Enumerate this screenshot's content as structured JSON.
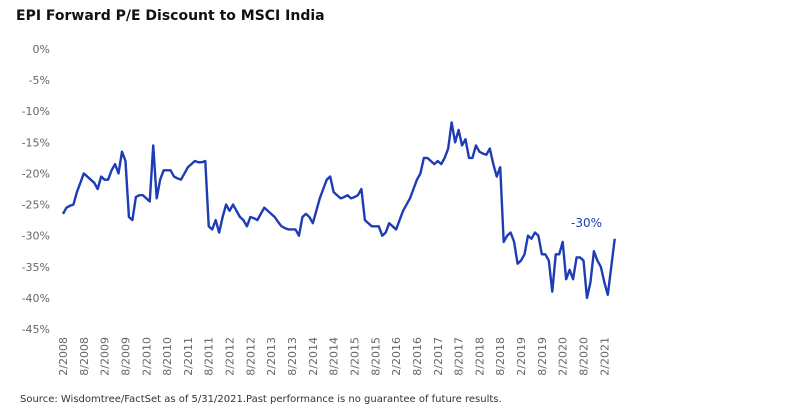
{
  "chart_data": {
    "type": "line",
    "title": "EPI Forward P/E Discount to MSCI India",
    "source": "Source:  Wisdomtree/FactSet as of 5/31/2021.Past performance is no guarantee of future results.",
    "annotation": "-30%",
    "categories": [
      "2/2008",
      null,
      null,
      null,
      null,
      null,
      "8/2008",
      null,
      null,
      null,
      null,
      null,
      "2/2009",
      null,
      null,
      null,
      null,
      null,
      "8/2009",
      null,
      null,
      null,
      null,
      null,
      "2/2010",
      null,
      null,
      null,
      null,
      null,
      "8/2010",
      null,
      null,
      null,
      null,
      null,
      "2/2011",
      null,
      null,
      null,
      null,
      null,
      "8/2011",
      null,
      null,
      null,
      null,
      null,
      "2/2012",
      null,
      null,
      null,
      null,
      null,
      "8/2012",
      null,
      null,
      null,
      null,
      null,
      "2/2013",
      null,
      null,
      null,
      null,
      null,
      "8/2013",
      null,
      null,
      null,
      null,
      null,
      "2/2014",
      null,
      null,
      null,
      null,
      null,
      "8/2014",
      null,
      null,
      null,
      null,
      null,
      "2/2015",
      null,
      null,
      null,
      null,
      null,
      "8/2015",
      null,
      null,
      null,
      null,
      null,
      "2/2016",
      null,
      null,
      null,
      null,
      null,
      "8/2016",
      null,
      null,
      null,
      null,
      null,
      "2/2017",
      null,
      null,
      null,
      null,
      null,
      "8/2017",
      null,
      null,
      null,
      null,
      null,
      "2/2018",
      null,
      null,
      null,
      null,
      null,
      "8/2018",
      null,
      null,
      null,
      null,
      null,
      "2/2019",
      null,
      null,
      null,
      null,
      null,
      "8/2019",
      null,
      null,
      null,
      null,
      null,
      "2/2020",
      null,
      null,
      null,
      null,
      null,
      "8/2020",
      null,
      null,
      null,
      null,
      null,
      "2/2021",
      null,
      null,
      null
    ],
    "series": [
      {
        "name": "EPI Forward P/E Discount",
        "color": "#1e3cb4",
        "values": [
          -26.5,
          -25.5,
          -25.2,
          -25,
          -23,
          -21.5,
          -20,
          -20.5,
          -21,
          -21.5,
          -22.5,
          -20.5,
          -21,
          -21,
          -19.5,
          -18.5,
          -20,
          -16.5,
          -18,
          -27,
          -27.5,
          -23.8,
          -23.5,
          -23.5,
          -24,
          -24.5,
          -15.5,
          -24,
          -21,
          -19.5,
          -19.5,
          -19.5,
          -20.5,
          -20.8,
          -21,
          -20,
          -19,
          -18.5,
          -18,
          -18.2,
          -18.2,
          -18,
          -28.5,
          -29,
          -27.5,
          -29.5,
          -27,
          -25,
          -26,
          -25,
          -26,
          -27,
          -27.5,
          -28.5,
          -27,
          -27.2,
          -27.5,
          -26.5,
          -25.5,
          -26,
          -26.5,
          -27,
          -27.8,
          -28.5,
          -28.8,
          -29,
          -29,
          -29,
          -30,
          -27,
          -26.5,
          -27,
          -28,
          -26,
          -24,
          -22.5,
          -21,
          -20.5,
          -23,
          -23.5,
          -24,
          -23.8,
          -23.5,
          -24,
          -23.8,
          -23.5,
          -22.5,
          -27.5,
          -28,
          -28.5,
          -28.5,
          -28.5,
          -30,
          -29.5,
          -28,
          -28.5,
          -29,
          -27.5,
          -26,
          -25,
          -24,
          -22.5,
          -21,
          -20,
          -17.5,
          -17.5,
          -18,
          -18.5,
          -18,
          -18.5,
          -17.5,
          -16,
          -11.8,
          -15,
          -13,
          -15.5,
          -14.5,
          -17.5,
          -17.5,
          -15.5,
          -16.5,
          -16.8,
          -17,
          -16,
          -18.5,
          -20.5,
          -19,
          -31,
          -30,
          -29.5,
          -31,
          -34.5,
          -34,
          -33,
          -30,
          -30.5,
          -29.5,
          -30,
          -33,
          -33,
          -34,
          -39,
          -33,
          -33,
          -31,
          -37,
          -35.5,
          -37,
          -33.5,
          -33.5,
          -34,
          -40,
          -37.5,
          -32.5,
          -34,
          -35,
          -37.5,
          -39.5,
          -35,
          -30.5
        ]
      }
    ],
    "ylim": [
      -45,
      0
    ],
    "yticks": [
      {
        "value": 0,
        "label": "0%"
      },
      {
        "value": -5,
        "label": "-5%"
      },
      {
        "value": -10,
        "label": "-10%"
      },
      {
        "value": -15,
        "label": "-15%"
      },
      {
        "value": -20,
        "label": "-20%"
      },
      {
        "value": -25,
        "label": "-25%"
      },
      {
        "value": -30,
        "label": "-30%"
      },
      {
        "value": -35,
        "label": "-35%"
      },
      {
        "value": -40,
        "label": "-40%"
      },
      {
        "value": -45,
        "label": "-45%"
      }
    ],
    "grid": false
  }
}
